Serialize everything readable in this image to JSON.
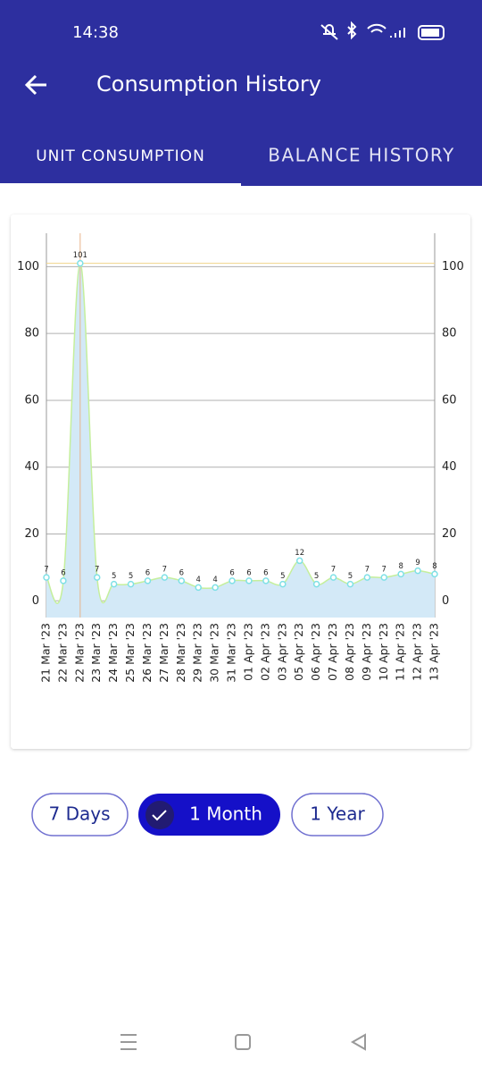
{
  "status_bar": {
    "time": "14:38"
  },
  "app_bar": {
    "title": "Consumption History"
  },
  "tabs": [
    "UNIT CONSUMPTION",
    "BALANCE HISTORY"
  ],
  "chart_data": {
    "type": "line",
    "categories": [
      "21 Mar '23",
      "22 Mar '23",
      "22 Mar '23",
      "23 Mar '23",
      "24 Mar '23",
      "25 Mar '23",
      "26 Mar '23",
      "27 Mar '23",
      "28 Mar '23",
      "29 Mar '23",
      "30 Mar '23",
      "31 Mar '23",
      "01 Apr '23",
      "02 Apr '23",
      "03 Apr '23",
      "05 Apr '23",
      "06 Apr '23",
      "07 Apr '23",
      "08 Apr '23",
      "09 Apr '23",
      "10 Apr '23",
      "11 Apr '23",
      "12 Apr '23",
      "13 Apr '23"
    ],
    "values": [
      7,
      6,
      101,
      7,
      5,
      5,
      6,
      7,
      6,
      4,
      4,
      6,
      6,
      6,
      5,
      12,
      5,
      7,
      5,
      7,
      7,
      8,
      9,
      8
    ],
    "color": "#c5ef9c",
    "fill": "#d3e9f7",
    "marker_color": "#7ee0e6",
    "ylim": [
      -5,
      110
    ],
    "yticks": [
      0,
      20,
      40,
      60,
      80,
      100
    ],
    "y2lim": [
      -5,
      110
    ],
    "y2ticks": [
      0,
      20,
      40,
      60,
      80,
      100
    ],
    "grid": true
  },
  "filters": [
    "7 Days",
    "1 Month",
    "1 Year"
  ]
}
